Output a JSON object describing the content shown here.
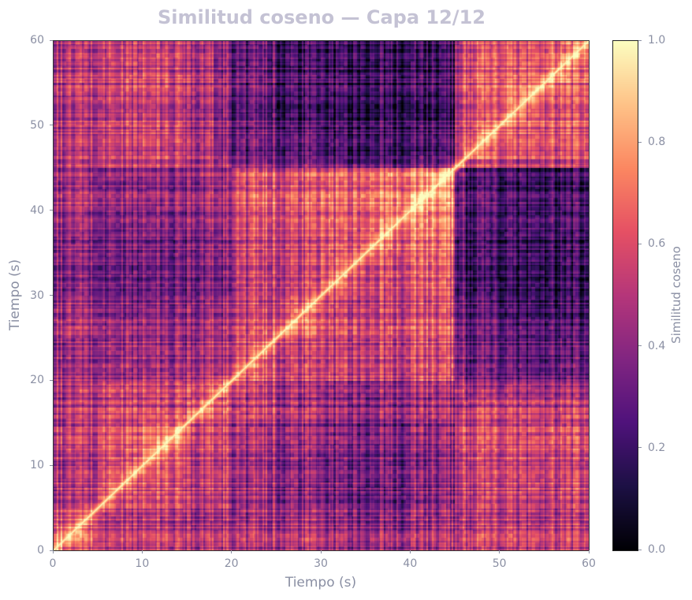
{
  "chart_data": {
    "type": "heatmap",
    "title": "Similitud coseno — Capa 12/12",
    "xlabel": "Tiempo (s)",
    "ylabel": "Tiempo (s)",
    "xlim": [
      0,
      60
    ],
    "ylim": [
      0,
      60
    ],
    "xticks": [
      "0",
      "10",
      "20",
      "30",
      "40",
      "50",
      "60"
    ],
    "yticks": [
      "0",
      "10",
      "20",
      "30",
      "40",
      "50",
      "60"
    ],
    "colormap": "magma",
    "colorbar": {
      "label": "Similitud coseno",
      "range": [
        0,
        1
      ],
      "ticks": [
        "0.0",
        "0.2",
        "0.4",
        "0.6",
        "0.8",
        "1.0"
      ]
    },
    "bin_edges_s": [
      0,
      5,
      10,
      15,
      20,
      25,
      30,
      35,
      40,
      45,
      50,
      55,
      60
    ],
    "matrix_note_diagonal": 1.0,
    "values": [
      [
        0.6,
        0.5,
        0.5,
        0.48,
        0.45,
        0.45,
        0.4,
        0.4,
        0.45,
        0.5,
        0.5,
        0.5
      ],
      [
        0.5,
        0.6,
        0.6,
        0.55,
        0.45,
        0.4,
        0.35,
        0.35,
        0.4,
        0.55,
        0.55,
        0.55
      ],
      [
        0.5,
        0.6,
        0.65,
        0.55,
        0.45,
        0.4,
        0.35,
        0.35,
        0.4,
        0.55,
        0.55,
        0.55
      ],
      [
        0.48,
        0.55,
        0.55,
        0.6,
        0.5,
        0.45,
        0.4,
        0.4,
        0.45,
        0.5,
        0.5,
        0.5
      ],
      [
        0.45,
        0.45,
        0.45,
        0.5,
        0.6,
        0.55,
        0.55,
        0.55,
        0.6,
        0.4,
        0.38,
        0.38
      ],
      [
        0.45,
        0.4,
        0.4,
        0.45,
        0.55,
        0.6,
        0.55,
        0.55,
        0.6,
        0.35,
        0.3,
        0.3
      ],
      [
        0.4,
        0.35,
        0.35,
        0.4,
        0.55,
        0.55,
        0.62,
        0.6,
        0.65,
        0.3,
        0.28,
        0.28
      ],
      [
        0.4,
        0.35,
        0.35,
        0.4,
        0.55,
        0.55,
        0.6,
        0.65,
        0.7,
        0.3,
        0.28,
        0.28
      ],
      [
        0.45,
        0.4,
        0.4,
        0.45,
        0.6,
        0.6,
        0.65,
        0.7,
        0.75,
        0.32,
        0.28,
        0.28
      ],
      [
        0.5,
        0.55,
        0.55,
        0.5,
        0.4,
        0.35,
        0.3,
        0.3,
        0.32,
        0.62,
        0.6,
        0.6
      ],
      [
        0.5,
        0.55,
        0.55,
        0.5,
        0.38,
        0.3,
        0.28,
        0.28,
        0.28,
        0.6,
        0.65,
        0.62
      ],
      [
        0.5,
        0.55,
        0.55,
        0.5,
        0.38,
        0.3,
        0.28,
        0.28,
        0.28,
        0.6,
        0.62,
        0.65
      ]
    ]
  }
}
